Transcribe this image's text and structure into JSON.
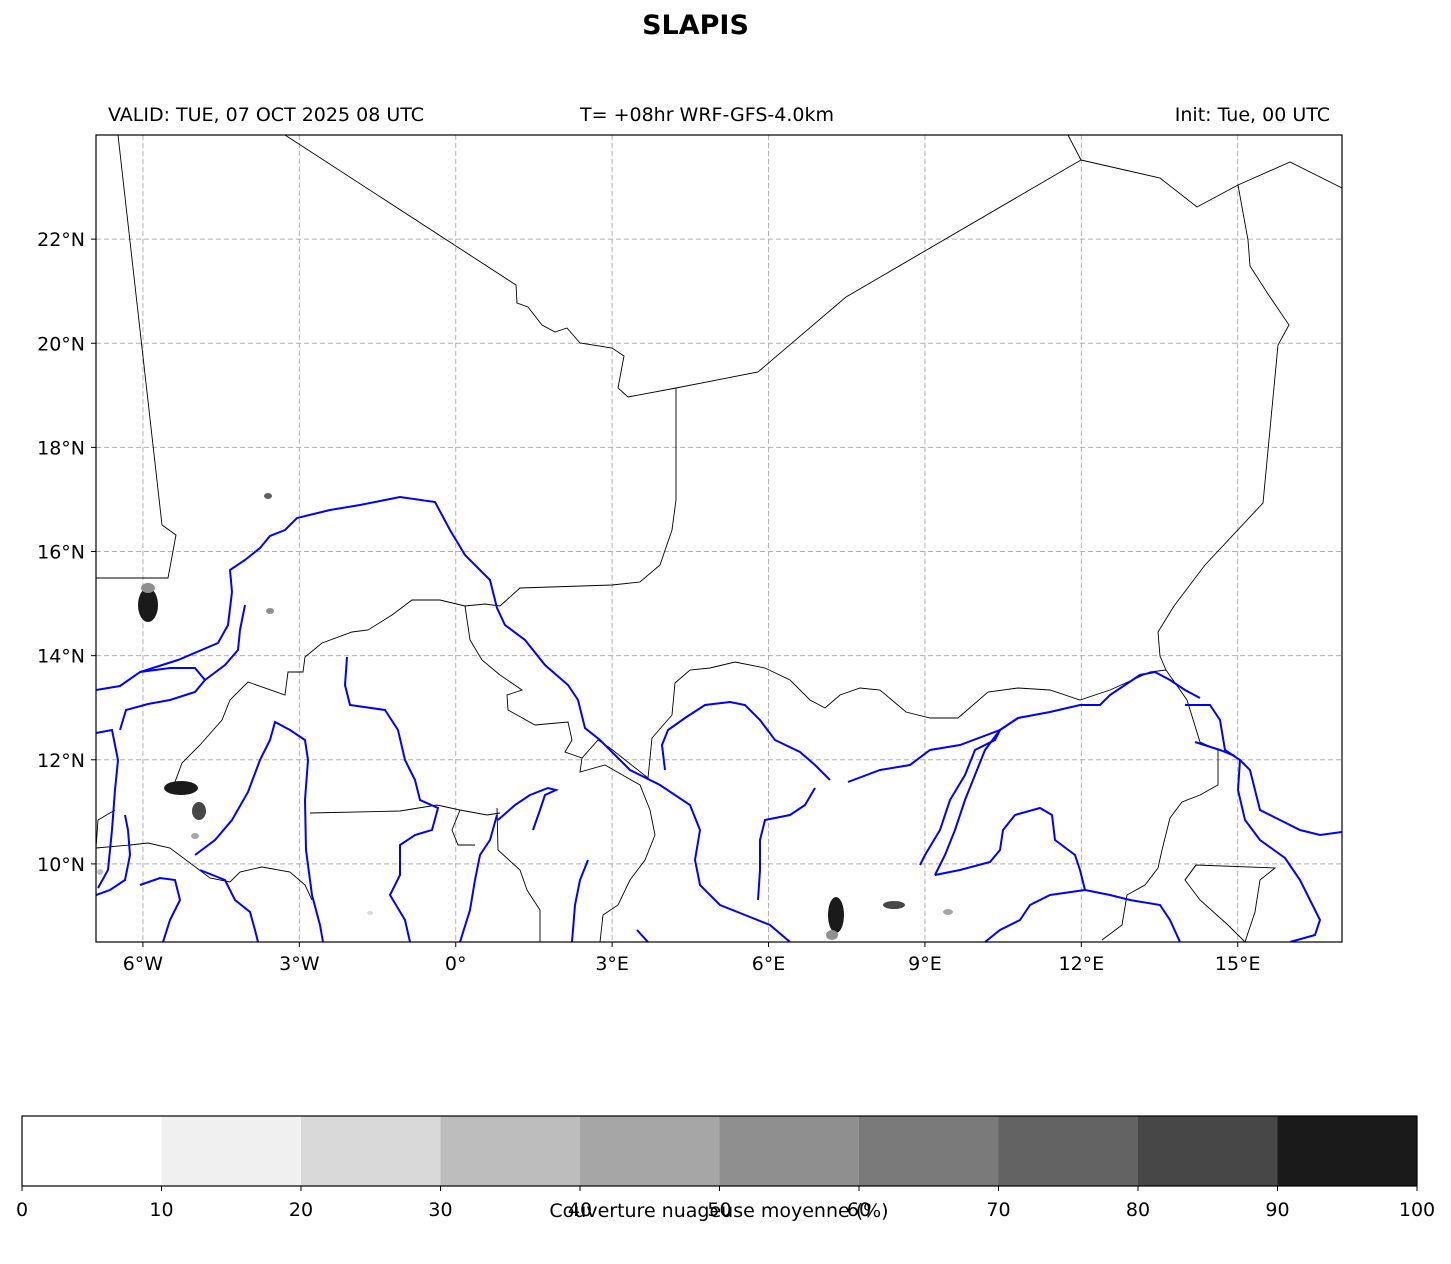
{
  "title": "SLAPIS",
  "subtitle": {
    "valid": "VALID: TUE, 07 OCT 2025 08 UTC",
    "forecast": "T= +08hr WRF-GFS-4.0km",
    "init": "Init: Tue, 00 UTC"
  },
  "map": {
    "lon_range": [
      -6.9,
      17
    ],
    "lat_range": [
      8.5,
      24
    ],
    "lon_ticks": [
      {
        "value": -6,
        "label": "6°W"
      },
      {
        "value": -3,
        "label": "3°W"
      },
      {
        "value": 0,
        "label": "0°"
      },
      {
        "value": 3,
        "label": "3°E"
      },
      {
        "value": 6,
        "label": "6°E"
      },
      {
        "value": 9,
        "label": "9°E"
      },
      {
        "value": 12,
        "label": "12°E"
      },
      {
        "value": 15,
        "label": "15°E"
      }
    ],
    "lat_ticks": [
      {
        "value": 10,
        "label": "10°N"
      },
      {
        "value": 12,
        "label": "12°N"
      },
      {
        "value": 14,
        "label": "14°N"
      },
      {
        "value": 16,
        "label": "16°N"
      },
      {
        "value": 18,
        "label": "18°N"
      },
      {
        "value": 20,
        "label": "20°N"
      },
      {
        "value": 22,
        "label": "22°N"
      }
    ],
    "gridlines": true,
    "colors": {
      "borders": "#000000",
      "rivers": "#0000ff",
      "grid": "#b0b0b0"
    }
  },
  "colorbar": {
    "label": "Couverture nuageuse moyenne (%)",
    "ticks": [
      "0",
      "10",
      "20",
      "30",
      "40",
      "50",
      "60",
      "70",
      "80",
      "90",
      "100"
    ],
    "colors": [
      "#ffffff",
      "#f0f0f0",
      "#d9d9d9",
      "#bdbdbd",
      "#a6a6a6",
      "#8f8f8f",
      "#7a7a7a",
      "#636363",
      "#474747",
      "#1a1a1a"
    ]
  }
}
